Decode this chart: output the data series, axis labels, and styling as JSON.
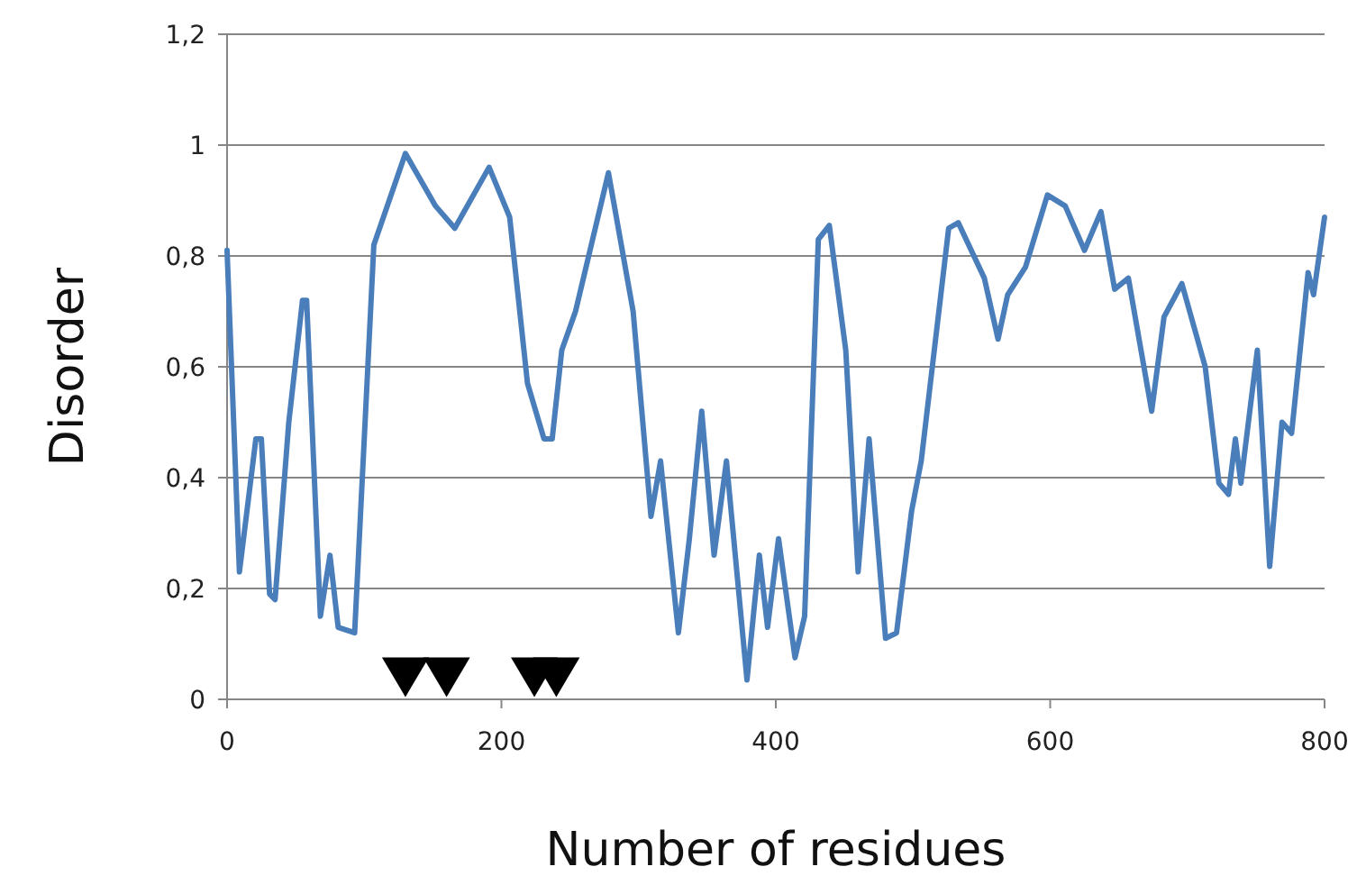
{
  "chart_data": {
    "type": "line",
    "xlabel": "Number of residues",
    "ylabel": "Disorder",
    "xlim": [
      0,
      800
    ],
    "xticks": [
      0,
      200,
      400,
      600,
      800
    ],
    "ylim": [
      0,
      1.2
    ],
    "yticks": [
      0,
      {
        "value": 0.2,
        "label": "0,2"
      },
      {
        "value": 0.4,
        "label": "0,4"
      },
      {
        "value": 0.6,
        "label": "0,6"
      },
      {
        "value": 0.8,
        "label": "0,8"
      },
      1,
      {
        "value": 1.2,
        "label": "1,2"
      }
    ],
    "grid": "y",
    "marker": "none",
    "line_style": "solid",
    "series": [
      {
        "color": "#4a7ebb",
        "x": [
          0,
          9,
          21,
          25,
          31,
          35,
          45,
          55,
          58,
          68,
          75,
          81,
          93,
          107,
          130,
          152,
          166,
          191,
          206,
          219,
          231,
          237,
          244,
          254,
          278,
          296,
          309,
          316,
          329,
          337,
          346,
          355,
          364,
          379,
          388,
          394,
          402,
          414,
          421,
          431,
          439,
          451,
          460,
          468,
          480,
          488,
          499,
          506,
          526,
          533,
          552,
          562,
          569,
          582,
          598,
          611,
          625,
          637,
          647,
          657,
          674,
          683,
          696,
          713,
          723,
          730,
          735,
          739,
          751,
          760,
          769,
          776,
          788,
          792,
          800
        ],
        "values": [
          0.81,
          0.23,
          0.47,
          0.47,
          0.19,
          0.18,
          0.5,
          0.72,
          0.72,
          0.15,
          0.26,
          0.13,
          0.12,
          0.82,
          0.985,
          0.89,
          0.85,
          0.96,
          0.87,
          0.57,
          0.47,
          0.47,
          0.63,
          0.7,
          0.95,
          0.7,
          0.33,
          0.43,
          0.12,
          0.29,
          0.52,
          0.26,
          0.43,
          0.035,
          0.26,
          0.13,
          0.29,
          0.075,
          0.15,
          0.83,
          0.855,
          0.63,
          0.23,
          0.47,
          0.11,
          0.12,
          0.34,
          0.43,
          0.85,
          0.86,
          0.76,
          0.65,
          0.73,
          0.78,
          0.91,
          0.89,
          0.81,
          0.88,
          0.74,
          0.76,
          0.52,
          0.69,
          0.75,
          0.6,
          0.39,
          0.37,
          0.47,
          0.39,
          0.63,
          0.24,
          0.5,
          0.48,
          0.77,
          0.73,
          0.87
        ]
      },
      {
        "type": "scatter",
        "marker": "triangle",
        "color": "#000000",
        "x": [
          130,
          160,
          224,
          240
        ],
        "values": [
          0.04,
          0.04,
          0.04,
          0.04
        ]
      }
    ]
  }
}
